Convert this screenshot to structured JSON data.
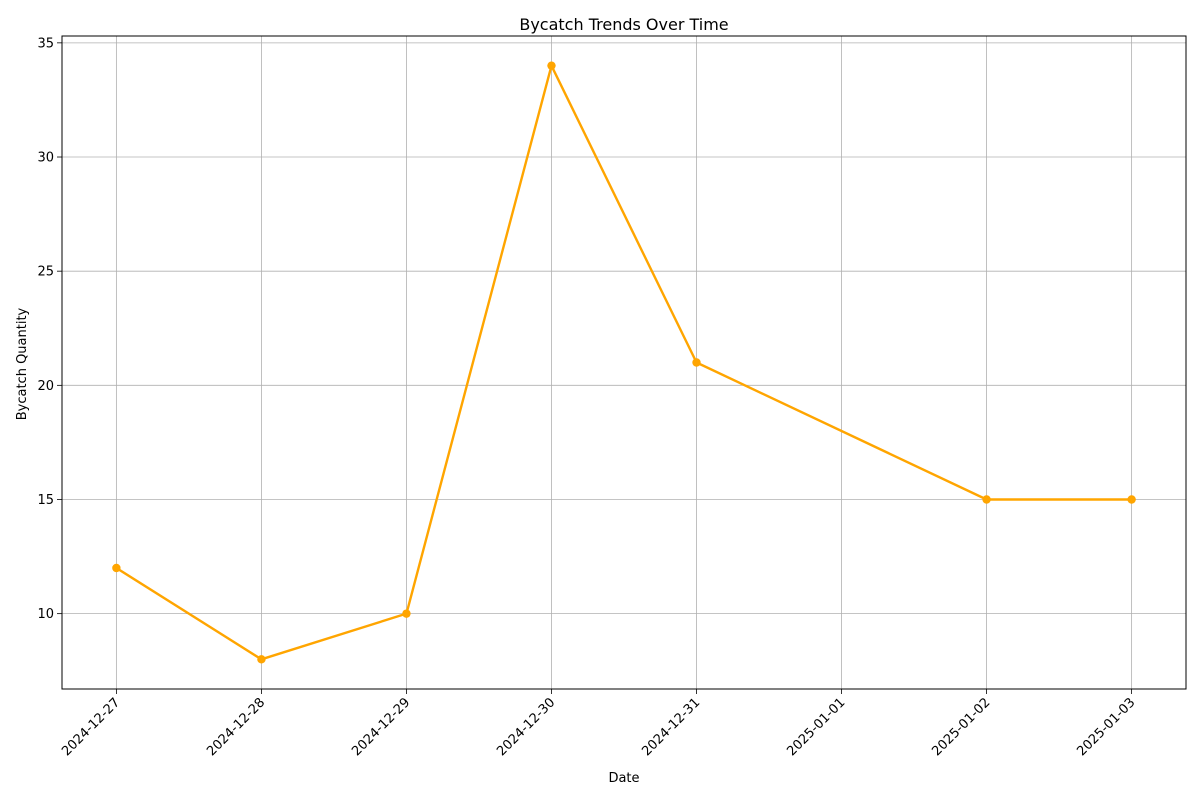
{
  "chart_data": {
    "type": "line",
    "title": "Bycatch Trends Over Time",
    "xlabel": "Date",
    "ylabel": "Bycatch Quantity",
    "x_ticks": [
      "2024-12-27",
      "2024-12-28",
      "2024-12-29",
      "2024-12-30",
      "2024-12-31",
      "2025-01-01",
      "2025-01-02",
      "2025-01-03"
    ],
    "y_ticks": [
      10,
      15,
      20,
      25,
      30,
      35
    ],
    "ylim": [
      6.7,
      35.3
    ],
    "xlim": [
      "2024-12-26 15:00",
      "2025-01-03 09:00"
    ],
    "grid": true,
    "legend": "none",
    "series": [
      {
        "color": "#FFA500",
        "marker": "circle",
        "points": [
          {
            "x": "2024-12-27",
            "y": 12
          },
          {
            "x": "2024-12-28",
            "y": 8
          },
          {
            "x": "2024-12-29",
            "y": 10
          },
          {
            "x": "2024-12-30",
            "y": 34
          },
          {
            "x": "2024-12-31",
            "y": 21
          },
          {
            "x": "2025-01-02",
            "y": 15
          },
          {
            "x": "2025-01-03",
            "y": 15
          }
        ]
      }
    ]
  }
}
